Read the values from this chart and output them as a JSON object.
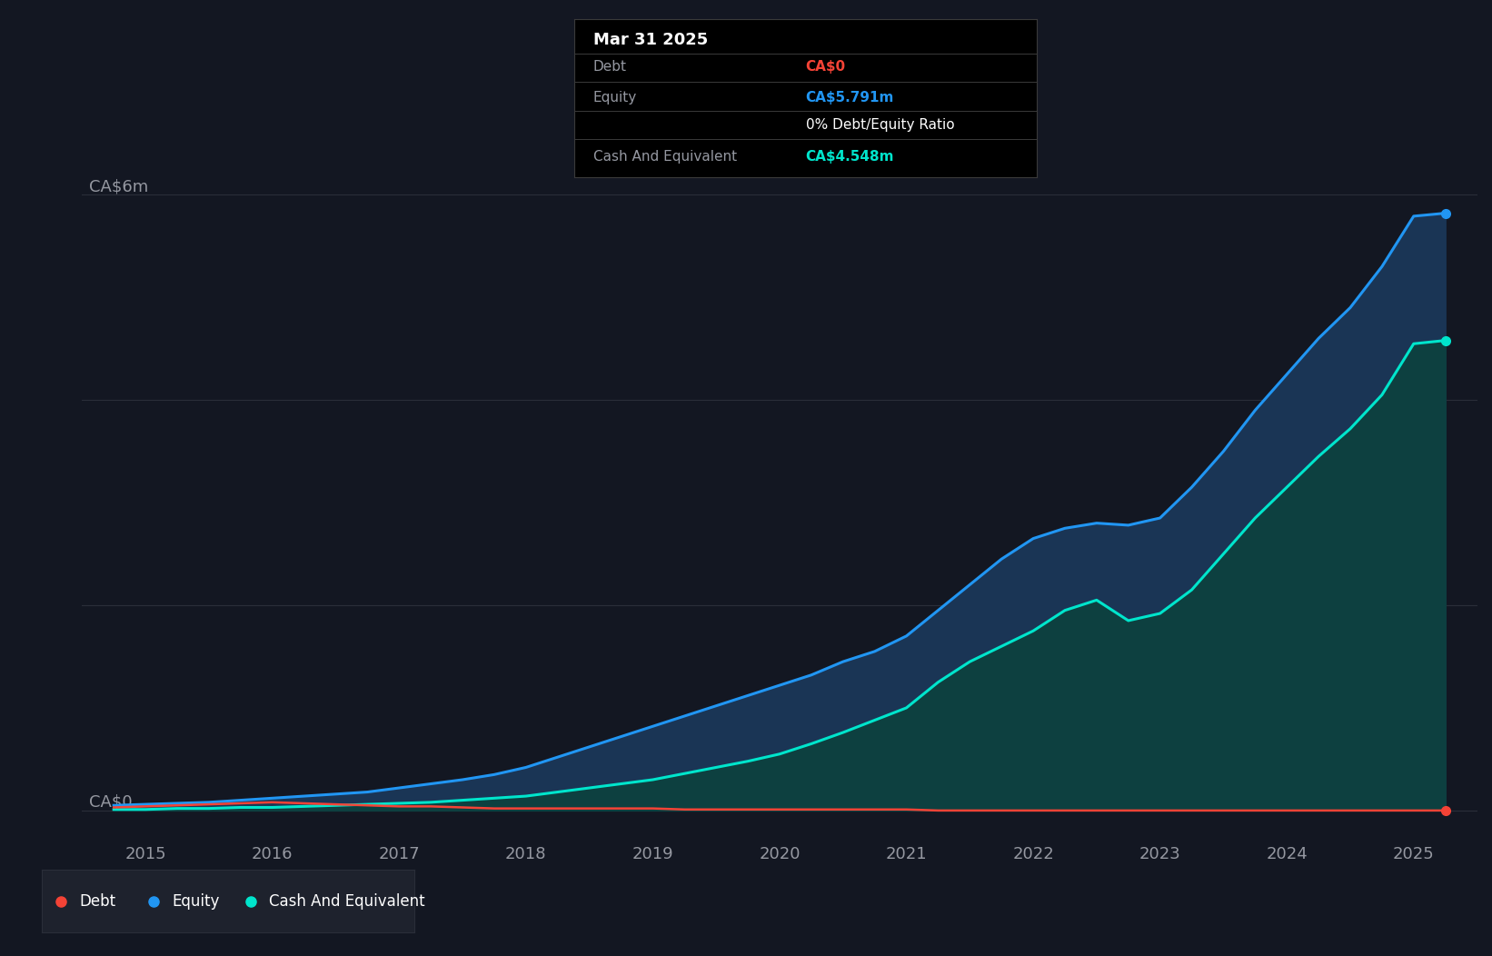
{
  "bg_color": "#131722",
  "plot_bg_color": "#131722",
  "grid_color": "#2a2e39",
  "axis_label_color": "#9598a1",
  "y_label": "CA$6m",
  "y_zero_label": "CA$0",
  "x_ticks": [
    2015,
    2016,
    2017,
    2018,
    2019,
    2020,
    2021,
    2022,
    2023,
    2024,
    2025
  ],
  "years": [
    2014.75,
    2015.0,
    2015.25,
    2015.5,
    2015.75,
    2016.0,
    2016.25,
    2016.5,
    2016.75,
    2017.0,
    2017.25,
    2017.5,
    2017.75,
    2018.0,
    2018.25,
    2018.5,
    2018.75,
    2019.0,
    2019.25,
    2019.5,
    2019.75,
    2020.0,
    2020.25,
    2020.5,
    2020.75,
    2021.0,
    2021.25,
    2021.5,
    2021.75,
    2022.0,
    2022.25,
    2022.5,
    2022.75,
    2023.0,
    2023.25,
    2023.5,
    2023.75,
    2024.0,
    2024.25,
    2024.5,
    2024.75,
    2025.0,
    2025.25
  ],
  "debt": [
    0.03,
    0.04,
    0.05,
    0.06,
    0.07,
    0.08,
    0.07,
    0.06,
    0.05,
    0.04,
    0.04,
    0.03,
    0.02,
    0.02,
    0.02,
    0.02,
    0.02,
    0.02,
    0.01,
    0.01,
    0.01,
    0.01,
    0.01,
    0.01,
    0.01,
    0.01,
    0.0,
    0.0,
    0.0,
    0.0,
    0.0,
    0.0,
    0.0,
    0.0,
    0.0,
    0.0,
    0.0,
    0.0,
    0.0,
    0.0,
    0.0,
    0.0,
    0.0
  ],
  "equity": [
    0.05,
    0.06,
    0.07,
    0.08,
    0.1,
    0.12,
    0.14,
    0.16,
    0.18,
    0.22,
    0.26,
    0.3,
    0.35,
    0.42,
    0.52,
    0.62,
    0.72,
    0.82,
    0.92,
    1.02,
    1.12,
    1.22,
    1.32,
    1.45,
    1.55,
    1.7,
    1.95,
    2.2,
    2.45,
    2.65,
    2.75,
    2.8,
    2.78,
    2.85,
    3.15,
    3.5,
    3.9,
    4.25,
    4.6,
    4.9,
    5.3,
    5.791,
    5.82
  ],
  "cash": [
    0.01,
    0.01,
    0.02,
    0.02,
    0.03,
    0.03,
    0.04,
    0.05,
    0.06,
    0.07,
    0.08,
    0.1,
    0.12,
    0.14,
    0.18,
    0.22,
    0.26,
    0.3,
    0.36,
    0.42,
    0.48,
    0.55,
    0.65,
    0.76,
    0.88,
    1.0,
    1.25,
    1.45,
    1.6,
    1.75,
    1.95,
    2.05,
    1.85,
    1.92,
    2.15,
    2.5,
    2.85,
    3.15,
    3.45,
    3.72,
    4.05,
    4.548,
    4.58
  ],
  "equity_color": "#2196f3",
  "cash_color": "#00e5cc",
  "debt_color": "#f44336",
  "equity_fill": "#1a3555",
  "cash_fill": "#0d4040",
  "ylim_min": -0.3,
  "ylim_max": 6.5,
  "xlim_min": 2014.5,
  "xlim_max": 2025.5,
  "tooltip": {
    "date": "Mar 31 2025",
    "debt_label": "Debt",
    "debt_value": "CA$0",
    "equity_label": "Equity",
    "equity_value": "CA$5.791m",
    "ratio_text": "0% Debt/Equity Ratio",
    "cash_label": "Cash And Equivalent",
    "cash_value": "CA$4.548m",
    "bg": "#000000",
    "border": "#3a3a3a",
    "header_color": "#ffffff",
    "label_color": "#9598a1",
    "debt_val_color": "#f44336",
    "equity_val_color": "#2196f3",
    "ratio_color": "#ffffff",
    "cash_val_color": "#00e5cc"
  },
  "legend": {
    "debt_label": "Debt",
    "equity_label": "Equity",
    "cash_label": "Cash And Equivalent",
    "bg": "#1e222d",
    "border": "#2a2e39"
  }
}
